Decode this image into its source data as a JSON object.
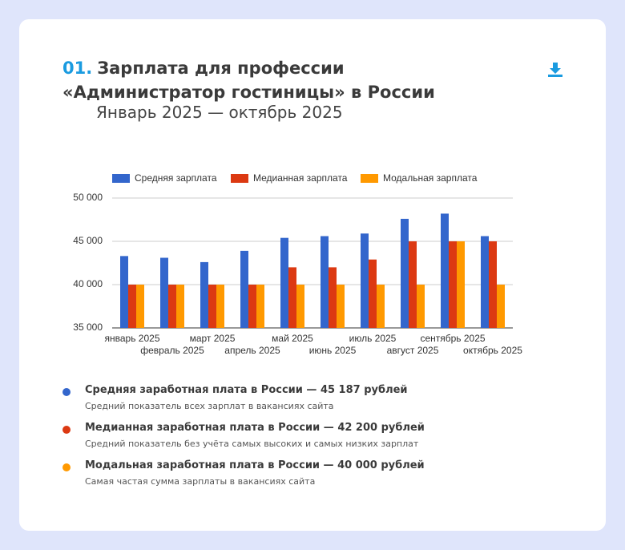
{
  "chart_data": {
    "type": "bar",
    "number": "01.",
    "title": "Зарплата для профессии «Администратор гостиницы» в России",
    "subtitle": "Январь 2025 — октябрь 2025",
    "categories": [
      "январь 2025",
      "февраль 2025",
      "март 2025",
      "апрель 2025",
      "май 2025",
      "июнь 2025",
      "июль 2025",
      "август 2025",
      "сентябрь 2025",
      "октябрь 2025"
    ],
    "series": [
      {
        "name": "Средняя зарплата",
        "color": "#3366cc",
        "values": [
          43300,
          43100,
          42600,
          43900,
          45400,
          45600,
          45900,
          47600,
          48200,
          45600
        ]
      },
      {
        "name": "Медианная зарплата",
        "color": "#dc3912",
        "values": [
          40000,
          40000,
          40000,
          40000,
          42000,
          42000,
          42900,
          45000,
          45000,
          45000
        ]
      },
      {
        "name": "Модальная зарплата",
        "color": "#ff9900",
        "values": [
          40000,
          40000,
          40000,
          40000,
          40000,
          40000,
          40000,
          40000,
          45000,
          40000
        ]
      }
    ],
    "ylim": [
      35000,
      50000
    ],
    "yticks": [
      {
        "value": 35000,
        "label": "35 000"
      },
      {
        "value": 40000,
        "label": "40 000"
      },
      {
        "value": 45000,
        "label": "45 000"
      },
      {
        "value": 50000,
        "label": "50 000"
      }
    ],
    "grid": true,
    "legend": "top"
  },
  "stats": [
    {
      "title": "Средняя заработная плата в России — 45 187 рублей",
      "note": "Средний показатель всех зарплат в вакансиях сайта",
      "color": "#3366cc"
    },
    {
      "title": "Медианная заработная плата в России — 42 200 рублей",
      "note": "Средний показатель без учёта самых высоких и самых низких зарплат",
      "color": "#dc3912"
    },
    {
      "title": "Модальная заработная плата в России — 40 000 рублей",
      "note": "Самая частая сумма зарплаты в вакансиях сайта",
      "color": "#ff9900"
    }
  ]
}
